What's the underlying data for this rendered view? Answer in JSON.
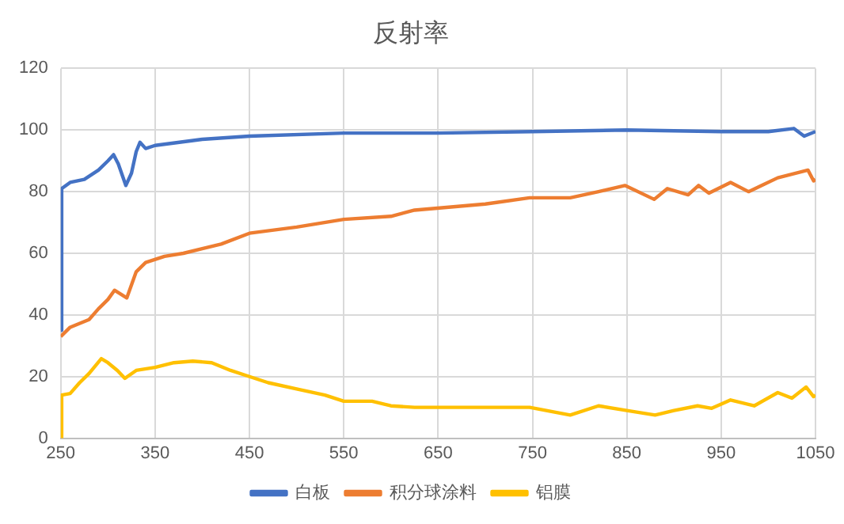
{
  "chart_data": {
    "type": "line",
    "title": "反射率",
    "xlim": [
      250,
      1050
    ],
    "xticks": [
      250,
      350,
      450,
      550,
      650,
      750,
      850,
      950,
      1050
    ],
    "ylim": [
      0,
      120
    ],
    "yticks": [
      0,
      20,
      40,
      60,
      80,
      100,
      120
    ],
    "grid": true,
    "legend": "bottom",
    "marker": "none",
    "series": [
      {
        "name": "白板",
        "color": "#4472c4",
        "x": [
          250,
          251,
          260,
          275,
          290,
          300,
          306,
          311,
          319,
          325,
          330,
          334,
          340,
          350,
          400,
          450,
          550,
          650,
          750,
          850,
          950,
          1000,
          1027,
          1038,
          1050
        ],
        "values": [
          35,
          81,
          83,
          84,
          87,
          90,
          92,
          89,
          82,
          86,
          93,
          96,
          94,
          95,
          97,
          98,
          99,
          99,
          99.5,
          100,
          99.5,
          99.5,
          100.5,
          98,
          99.5
        ]
      },
      {
        "name": "积分球涂料",
        "color": "#ed7d31",
        "x": [
          250,
          260,
          280,
          290,
          300,
          307,
          320,
          330,
          340,
          360,
          380,
          400,
          420,
          450,
          500,
          550,
          600,
          625,
          700,
          747,
          790,
          820,
          848,
          879,
          893,
          915,
          926,
          937,
          960,
          979,
          993,
          1010,
          1042,
          1048,
          1050
        ],
        "values": [
          33,
          36,
          38.5,
          42,
          45,
          48,
          45.5,
          54,
          57,
          59,
          60,
          61.5,
          63,
          66.5,
          68.5,
          71,
          72,
          74,
          76,
          78,
          78,
          80,
          82,
          77.5,
          81,
          79,
          82,
          79.5,
          83,
          80,
          82,
          84.5,
          87,
          83.5,
          84
        ]
      },
      {
        "name": "铝膜",
        "color": "#ffc000",
        "x": [
          250,
          251,
          260,
          270,
          280,
          293,
          300,
          310,
          318,
          330,
          350,
          370,
          390,
          410,
          430,
          450,
          470,
          500,
          530,
          550,
          580,
          600,
          625,
          700,
          747,
          790,
          820,
          850,
          880,
          900,
          925,
          940,
          960,
          985,
          1010,
          1025,
          1040,
          1048,
          1050
        ],
        "values": [
          0,
          14,
          14.5,
          18,
          21,
          25.8,
          24.5,
          22,
          19.4,
          22,
          23,
          24.5,
          25,
          24.5,
          22,
          20,
          18,
          16,
          14,
          12,
          12,
          10.5,
          10,
          10,
          10,
          7.5,
          10.5,
          9,
          7.5,
          9,
          10.5,
          9.7,
          12.4,
          10.5,
          14.8,
          13,
          16.6,
          13.5,
          14
        ]
      }
    ]
  }
}
